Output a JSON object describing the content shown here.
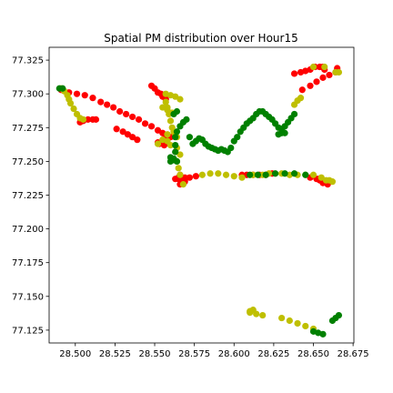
{
  "chart_data": {
    "type": "scatter",
    "title": "Spatial PM distribution over Hour15",
    "xlabel": "",
    "ylabel": "",
    "xlim": [
      28.4835,
      28.6755
    ],
    "ylim": [
      77.1155,
      77.3345
    ],
    "x_ticks": [
      "28.500",
      "28.525",
      "28.550",
      "28.575",
      "28.600",
      "28.625",
      "28.650",
      "28.675"
    ],
    "y_ticks": [
      "77.125",
      "77.150",
      "77.175",
      "77.200",
      "77.225",
      "77.250",
      "77.275",
      "77.300",
      "77.325"
    ],
    "grid": false,
    "legend": "none",
    "colors": {
      "high": "#ff0000",
      "medium": "#bfbf00",
      "low": "#008000"
    },
    "series": [
      {
        "color": "#ff0000",
        "x": [
          28.491,
          28.496,
          28.501,
          28.506,
          28.511,
          28.516,
          28.52,
          28.524,
          28.528,
          28.532,
          28.536,
          28.54,
          28.544,
          28.548,
          28.552,
          28.555,
          28.557,
          28.56,
          28.503,
          28.505,
          28.508,
          28.511,
          28.513,
          28.526,
          28.53,
          28.533,
          28.536,
          28.539,
          28.548,
          28.55,
          28.552,
          28.554,
          28.555,
          28.557,
          28.563,
          28.565,
          28.567,
          28.569,
          28.572,
          28.576,
          28.605,
          28.608,
          28.612,
          28.616,
          28.62,
          28.624,
          28.648,
          28.652,
          28.654,
          28.656,
          28.659,
          28.566,
          28.565,
          28.566,
          28.567,
          28.569,
          28.638,
          28.642,
          28.645,
          28.648,
          28.651,
          28.654,
          28.656,
          28.657,
          28.643,
          28.648,
          28.652,
          28.656,
          28.66,
          28.664,
          28.665,
          28.653,
          28.556,
          28.552,
          28.553,
          28.555
        ],
        "y": [
          77.303,
          77.301,
          77.3,
          77.299,
          77.297,
          77.294,
          77.292,
          77.29,
          77.287,
          77.285,
          77.283,
          77.281,
          77.278,
          77.276,
          77.273,
          77.271,
          77.269,
          77.268,
          77.279,
          77.28,
          77.281,
          77.281,
          77.281,
          77.274,
          77.272,
          77.27,
          77.268,
          77.266,
          77.306,
          77.304,
          77.301,
          77.3,
          77.298,
          77.296,
          77.237,
          77.238,
          77.238,
          77.238,
          77.238,
          77.239,
          77.24,
          77.24,
          77.24,
          77.24,
          77.24,
          77.241,
          77.238,
          77.237,
          77.236,
          77.234,
          77.233,
          77.233,
          77.237,
          77.24,
          77.236,
          77.235,
          77.315,
          77.316,
          77.317,
          77.318,
          77.32,
          77.32,
          77.32,
          77.318,
          77.303,
          77.306,
          77.309,
          77.312,
          77.314,
          77.316,
          77.319,
          77.237,
          77.262,
          77.264,
          77.263,
          77.265
        ]
      },
      {
        "color": "#bfbf00",
        "x": [
          28.491,
          28.493,
          28.495,
          28.496,
          28.497,
          28.499,
          28.501,
          28.503,
          28.505,
          28.557,
          28.56,
          28.563,
          28.566,
          28.557,
          28.558,
          28.559,
          28.56,
          28.561,
          28.562,
          28.563,
          28.564,
          28.558,
          28.56,
          28.564,
          28.565,
          28.566,
          28.568,
          28.58,
          28.585,
          28.59,
          28.595,
          28.6,
          28.605,
          28.612,
          28.618,
          28.622,
          28.63,
          28.635,
          28.64,
          28.645,
          28.65,
          28.655,
          28.658,
          28.66,
          28.662,
          28.664,
          28.666,
          28.64,
          28.638,
          28.642,
          28.65,
          28.657,
          28.612,
          28.61,
          28.614,
          28.618,
          28.61,
          28.63,
          28.635,
          28.64,
          28.645,
          28.65,
          28.555,
          28.558,
          28.561,
          28.552,
          28.555,
          28.558,
          28.562,
          28.564,
          28.566
        ],
        "y": [
          77.304,
          77.302,
          77.299,
          77.296,
          77.293,
          77.289,
          77.285,
          77.282,
          77.281,
          77.3,
          77.299,
          77.298,
          77.296,
          77.294,
          77.29,
          77.285,
          77.28,
          77.275,
          77.272,
          77.27,
          77.268,
          77.265,
          77.262,
          77.25,
          77.245,
          77.24,
          77.233,
          77.24,
          77.241,
          77.241,
          77.24,
          77.239,
          77.238,
          77.24,
          77.24,
          77.241,
          77.241,
          77.24,
          77.24,
          77.24,
          77.24,
          77.238,
          77.236,
          77.236,
          77.235,
          77.316,
          77.316,
          77.295,
          77.292,
          77.297,
          77.32,
          77.32,
          77.14,
          77.138,
          77.137,
          77.136,
          77.139,
          77.134,
          77.132,
          77.13,
          77.128,
          77.126,
          77.29,
          77.288,
          77.286,
          77.263,
          77.266,
          77.27,
          77.272,
          77.26,
          77.255
        ]
      },
      {
        "color": "#008000",
        "x": [
          28.49,
          28.492,
          28.56,
          28.562,
          28.563,
          28.563,
          28.563,
          28.564,
          28.566,
          28.568,
          28.57,
          28.572,
          28.574,
          28.576,
          28.578,
          28.58,
          28.582,
          28.584,
          28.586,
          28.588,
          28.59,
          28.592,
          28.594,
          28.596,
          28.598,
          28.6,
          28.602,
          28.604,
          28.606,
          28.608,
          28.61,
          28.612,
          28.614,
          28.616,
          28.618,
          28.62,
          28.622,
          28.624,
          28.626,
          28.628,
          28.63,
          28.632,
          28.634,
          28.636,
          28.638,
          28.628,
          28.63,
          28.632,
          28.56,
          28.562,
          28.564,
          28.61,
          28.615,
          28.62,
          28.626,
          28.632,
          28.638,
          28.645,
          28.65,
          28.653,
          28.656,
          28.662,
          28.664,
          28.666,
          28.562,
          28.564
        ],
        "y": [
          77.304,
          77.304,
          77.25,
          77.252,
          77.257,
          77.262,
          77.268,
          77.272,
          77.276,
          77.279,
          77.281,
          77.268,
          77.263,
          77.265,
          77.267,
          77.266,
          77.263,
          77.261,
          77.26,
          77.259,
          77.258,
          77.259,
          77.258,
          77.257,
          77.26,
          77.265,
          77.268,
          77.272,
          77.275,
          77.278,
          77.28,
          77.282,
          77.285,
          77.287,
          77.287,
          77.285,
          77.283,
          77.281,
          77.278,
          77.275,
          77.274,
          77.276,
          77.279,
          77.282,
          77.285,
          77.27,
          77.271,
          77.271,
          77.253,
          77.251,
          77.25,
          77.24,
          77.24,
          77.24,
          77.241,
          77.241,
          77.241,
          77.24,
          77.124,
          77.123,
          77.122,
          77.132,
          77.134,
          77.136,
          77.285,
          77.287
        ]
      }
    ]
  }
}
